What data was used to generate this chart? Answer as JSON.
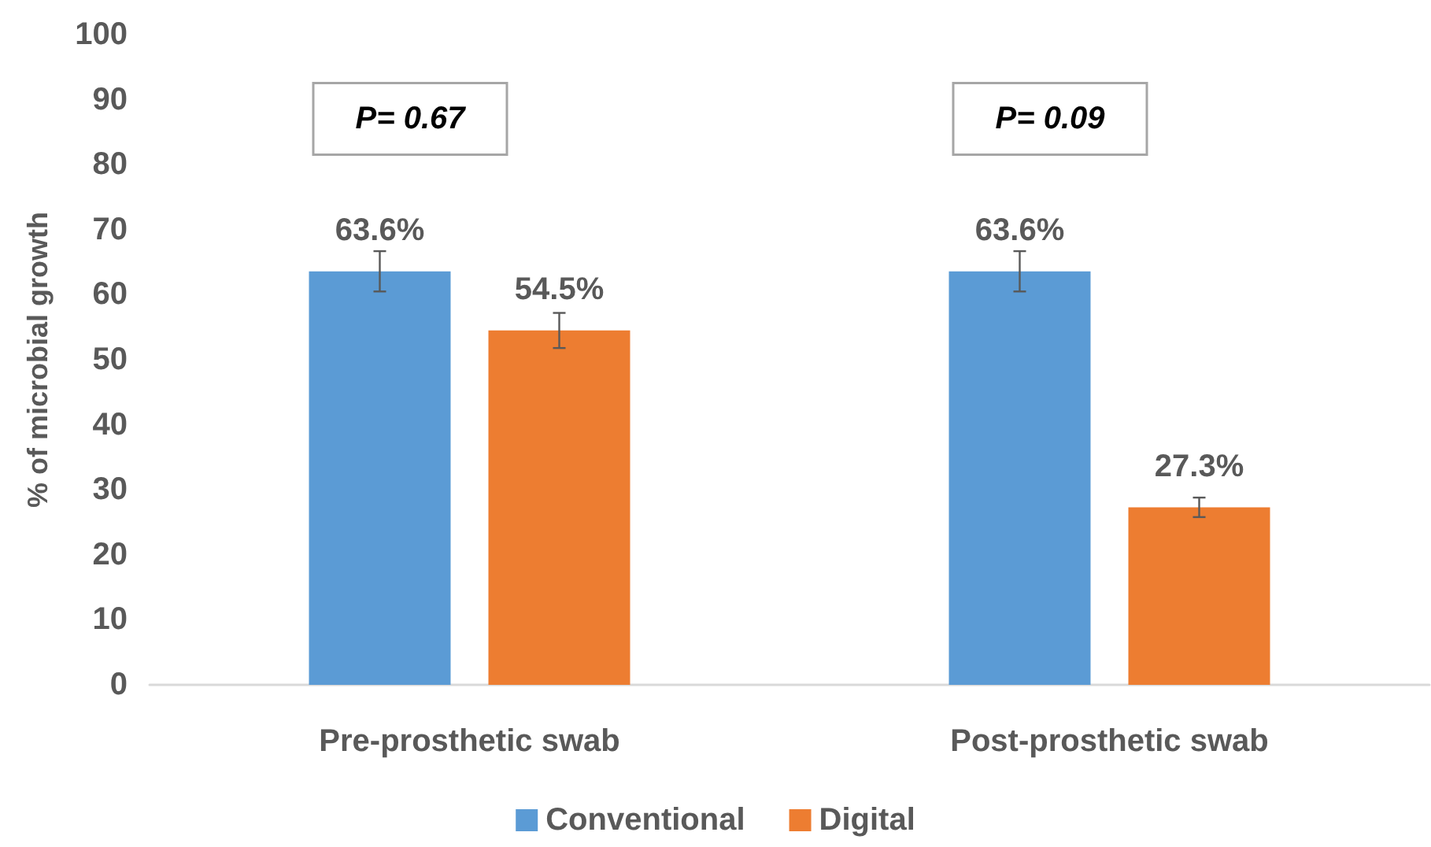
{
  "chart_data": {
    "type": "bar",
    "ylabel": "% of microbial growth",
    "categories": [
      "Pre-prosthetic swab",
      "Post-prosthetic swab"
    ],
    "series": [
      {
        "name": "Conventional",
        "color": "#5b9bd5",
        "values": [
          63.6,
          63.6
        ],
        "errors": [
          3.1,
          3.1
        ],
        "value_labels": [
          "63.6%",
          "63.6%"
        ]
      },
      {
        "name": "Digital",
        "color": "#ed7d31",
        "values": [
          54.5,
          27.3
        ],
        "errors": [
          2.7,
          1.5
        ],
        "value_labels": [
          "54.5%",
          "27.3%"
        ]
      }
    ],
    "ylim": [
      0,
      100
    ],
    "yticks": [
      0,
      10,
      20,
      30,
      40,
      50,
      60,
      70,
      80,
      90,
      100
    ],
    "grid": false,
    "legend": "bottom",
    "annotations": [
      "P= 0.67",
      "P= 0.09"
    ]
  }
}
